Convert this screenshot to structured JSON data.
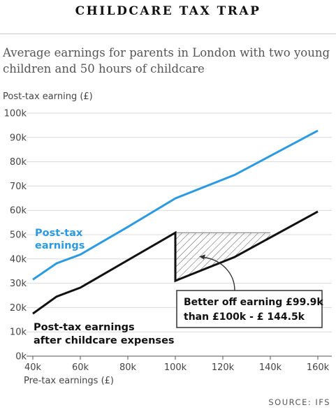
{
  "header": {
    "title": "CHILDCARE TAX TRAP",
    "subtitle": "Average earnings for parents in London with two young children and 50 hours of childcare",
    "source": "SOURCE: IFS"
  },
  "chart_data": {
    "type": "line",
    "title": "CHILDCARE TAX TRAP",
    "subtitle": "Average earnings for parents in London with two young children and 50 hours of childcare",
    "xlabel": "Pre-tax earnings (£)",
    "ylabel": "Post-tax earning (£)",
    "xlim": [
      40000,
      160000
    ],
    "ylim": [
      0,
      100000
    ],
    "x_ticks": [
      {
        "value": 40000,
        "label": "40k"
      },
      {
        "value": 60000,
        "label": "60k"
      },
      {
        "value": 80000,
        "label": "80k"
      },
      {
        "value": 100000,
        "label": "100k"
      },
      {
        "value": 120000,
        "label": "120k"
      },
      {
        "value": 140000,
        "label": "140k"
      },
      {
        "value": 160000,
        "label": "160k"
      }
    ],
    "y_ticks": [
      {
        "value": 0,
        "label": "0k"
      },
      {
        "value": 10000,
        "label": "10k"
      },
      {
        "value": 20000,
        "label": "20k"
      },
      {
        "value": 30000,
        "label": "30k"
      },
      {
        "value": 40000,
        "label": "40k"
      },
      {
        "value": 50000,
        "label": "50k"
      },
      {
        "value": 60000,
        "label": "60k"
      },
      {
        "value": 70000,
        "label": "70k"
      },
      {
        "value": 80000,
        "label": "80k"
      },
      {
        "value": 90000,
        "label": "90k"
      },
      {
        "value": 100000,
        "label": "100k"
      }
    ],
    "grid": true,
    "series": [
      {
        "name_lines": [
          "Post-tax",
          "earnings"
        ],
        "color": "#2b9ae0",
        "points": [
          [
            40000,
            31500
          ],
          [
            50000,
            38200
          ],
          [
            60000,
            41800
          ],
          [
            80000,
            53200
          ],
          [
            100000,
            64900
          ],
          [
            125000,
            74600
          ],
          [
            160000,
            92800
          ]
        ]
      },
      {
        "name_lines": [
          "Post-tax earnings",
          "after childcare expenses"
        ],
        "color": "#111111",
        "points": [
          [
            40000,
            17500
          ],
          [
            50000,
            24500
          ],
          [
            60000,
            28200
          ],
          [
            100000,
            50800
          ],
          [
            100000,
            31000
          ],
          [
            125000,
            40800
          ],
          [
            160000,
            59500
          ]
        ]
      }
    ],
    "shaded_region": {
      "x_start": 100000,
      "x_end": 140000,
      "y_top": 50800
    },
    "annotation": {
      "lines": [
        "Better off earning £99.9k",
        "than £100k - £ 144.5k"
      ],
      "target": [
        110000,
        41000
      ]
    }
  }
}
